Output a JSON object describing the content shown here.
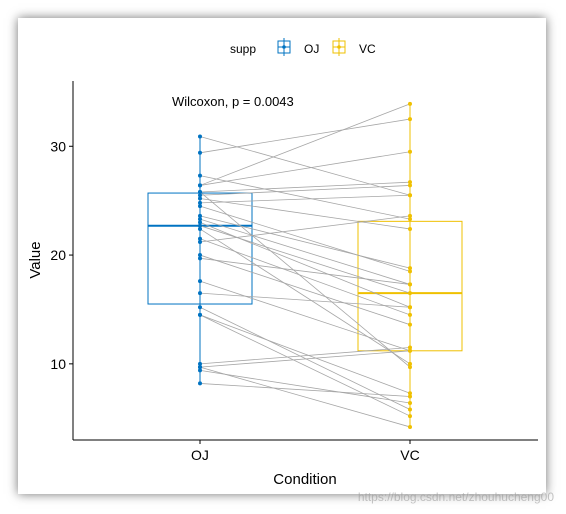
{
  "chart_data": {
    "type": "box",
    "title": "",
    "xlabel": "Condition",
    "ylabel": "Value",
    "categories": [
      "OJ",
      "VC"
    ],
    "ylim": [
      3,
      36
    ],
    "yticks": [
      10,
      20,
      30
    ],
    "legend": {
      "title": "supp",
      "position": "top",
      "entries": [
        "OJ",
        "VC"
      ]
    },
    "colors": {
      "OJ": "#0073C2",
      "VC": "#EFC000",
      "lines": "#a6a6a6"
    },
    "annotation": "Wilcoxon, p = 0.0043",
    "boxes": [
      {
        "name": "OJ",
        "q1": 15.5,
        "median": 22.7,
        "q3": 25.7
      },
      {
        "name": "VC",
        "q1": 11.2,
        "median": 16.5,
        "q3": 23.1
      }
    ],
    "pairs": [
      [
        30.9,
        25.5
      ],
      [
        29.4,
        32.5
      ],
      [
        27.3,
        23.3
      ],
      [
        26.4,
        29.5
      ],
      [
        26.4,
        33.9
      ],
      [
        25.8,
        26.7
      ],
      [
        25.5,
        26.4
      ],
      [
        25.2,
        22.4
      ],
      [
        24.8,
        25.5
      ],
      [
        24.5,
        18.5
      ],
      [
        23.6,
        18.8
      ],
      [
        23.3,
        17.3
      ],
      [
        23.0,
        15.2
      ],
      [
        22.7,
        16.5
      ],
      [
        22.4,
        10.0
      ],
      [
        21.5,
        14.5
      ],
      [
        21.2,
        23.6
      ],
      [
        20.0,
        13.6
      ],
      [
        19.7,
        17.3
      ],
      [
        17.6,
        11.2
      ],
      [
        16.5,
        15.2
      ],
      [
        15.2,
        5.8
      ],
      [
        14.5,
        7.3
      ],
      [
        10.0,
        11.5
      ],
      [
        9.7,
        11.2
      ],
      [
        9.4,
        6.4
      ],
      [
        9.7,
        4.2
      ],
      [
        8.2,
        7.0
      ],
      [
        14.5,
        5.2
      ],
      [
        25.8,
        9.7
      ]
    ]
  },
  "watermark": "https://blog.csdn.net/zhouhucheng00"
}
